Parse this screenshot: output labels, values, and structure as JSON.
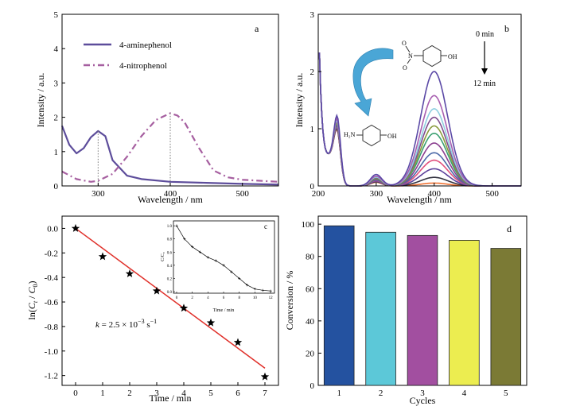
{
  "chart_data": [
    {
      "panel": "a",
      "type": "line",
      "xlabel": "Wavelength / nm",
      "ylabel": "Intensity / a.u.",
      "xlim": [
        250,
        550
      ],
      "ylim": [
        0,
        5
      ],
      "xticks": [
        300,
        400,
        500
      ],
      "yticks": [
        0,
        1,
        2,
        3,
        4,
        5
      ],
      "legend_position": "top-left",
      "series": [
        {
          "name": "4-aminephenol",
          "color": "#5d4d9b",
          "style": "solid",
          "x": [
            250,
            260,
            270,
            280,
            290,
            300,
            310,
            320,
            340,
            360,
            400,
            450,
            500,
            550
          ],
          "y": [
            1.75,
            1.2,
            0.95,
            1.1,
            1.42,
            1.6,
            1.45,
            0.75,
            0.3,
            0.2,
            0.12,
            0.09,
            0.06,
            0.04
          ]
        },
        {
          "name": "4-nitrophenol",
          "color": "#a65fa0",
          "style": "dashdot",
          "x": [
            250,
            270,
            290,
            300,
            320,
            340,
            360,
            380,
            400,
            410,
            420,
            440,
            460,
            480,
            500,
            550
          ],
          "y": [
            0.42,
            0.2,
            0.12,
            0.15,
            0.35,
            0.85,
            1.45,
            1.92,
            2.12,
            2.05,
            1.85,
            1.1,
            0.45,
            0.25,
            0.18,
            0.12
          ]
        }
      ],
      "annotations": [
        "a"
      ]
    },
    {
      "panel": "b",
      "type": "line",
      "xlabel": "Wavelength / nm",
      "ylabel": "Intensity / a.u.",
      "xlim": [
        200,
        550
      ],
      "ylim": [
        0,
        3
      ],
      "xticks": [
        200,
        300,
        400,
        500
      ],
      "yticks": [
        0,
        1,
        2,
        3
      ],
      "peak_max_values": [
        2.0,
        1.58,
        1.35,
        1.2,
        1.05,
        0.92,
        0.75,
        0.58,
        0.45,
        0.3,
        0.15,
        0.05
      ],
      "series_colors": [
        "#5b49a6",
        "#a85fb0",
        "#8fd0e0",
        "#7f4d8e",
        "#8a9a3c",
        "#3aa070",
        "#8b3f8f",
        "#4d6aa8",
        "#e0507d",
        "#5b3f9a",
        "#333340",
        "#f07030"
      ],
      "annotations": [
        "b",
        "0 min",
        "12 min",
        "H₂N",
        "OH",
        "N",
        "O"
      ]
    },
    {
      "panel": "c",
      "type": "scatter",
      "xlabel": "Time / min",
      "ylabel": "ln(Ct / C0)",
      "xlim": [
        -0.5,
        7.5
      ],
      "ylim": [
        -1.28,
        0.1
      ],
      "xticks": [
        0,
        1,
        2,
        3,
        4,
        5,
        6,
        7
      ],
      "yticks": [
        0.0,
        -0.2,
        -0.4,
        -0.6,
        -0.8,
        -1.0,
        -1.2
      ],
      "x": [
        0,
        1,
        2,
        3,
        4,
        5,
        6,
        7
      ],
      "y": [
        0.0,
        -0.23,
        -0.37,
        -0.51,
        -0.65,
        -0.77,
        -0.93,
        -1.21
      ],
      "fit_line": {
        "x": [
          0,
          7
        ],
        "y": [
          0.0,
          -1.14
        ],
        "color": "#e0302a"
      },
      "rate_text": {
        "k": "k",
        "eq": " = 2.5 × 10",
        "exp1": "−3",
        "unit": " s",
        "exp2": "−1"
      },
      "annotations": [
        "c"
      ],
      "inset": {
        "xlabel": "Time / min",
        "ylabel": "C/C₀",
        "xticks": [
          0,
          2,
          4,
          6,
          8,
          10,
          12
        ],
        "yticks": [
          0.0,
          0.2,
          0.4,
          0.6,
          0.8,
          1.0
        ],
        "ytick_labels": [
          "0.0",
          "0.2",
          "0.4",
          "0.6",
          "0.8",
          "1.0"
        ],
        "x": [
          0,
          1,
          2,
          3,
          4,
          5,
          6,
          7,
          8,
          9,
          10,
          11,
          12
        ],
        "y": [
          1.0,
          0.8,
          0.68,
          0.6,
          0.52,
          0.47,
          0.4,
          0.3,
          0.2,
          0.1,
          0.04,
          0.02,
          0.01
        ],
        "label": "c"
      }
    },
    {
      "panel": "d",
      "type": "bar",
      "xlabel": "Cycles",
      "ylabel": "Conversion / %",
      "ylim": [
        0,
        105
      ],
      "yticks": [
        0,
        20,
        40,
        60,
        80,
        100
      ],
      "categories": [
        "1",
        "2",
        "3",
        "4",
        "5"
      ],
      "values": [
        99,
        95,
        93,
        90,
        85
      ],
      "colors": [
        "#2452a0",
        "#5cc8d8",
        "#a24fa0",
        "#eced50",
        "#7b7a35"
      ],
      "annotations": [
        "d"
      ]
    }
  ]
}
